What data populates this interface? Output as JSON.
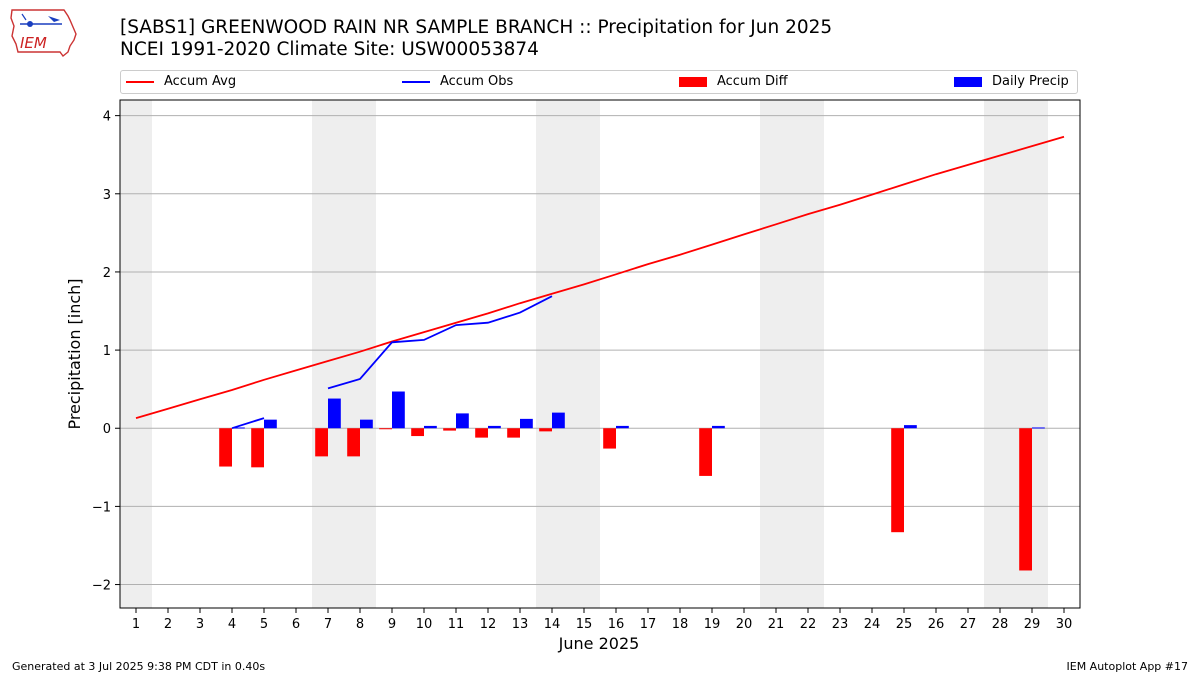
{
  "header": {
    "title_line1": "[SABS1] GREENWOOD RAIN NR SAMPLE BRANCH :: Precipitation for Jun 2025",
    "title_line2": "NCEI 1991-2020 Climate Site: USW00053874",
    "logo_text": "IEM"
  },
  "footer": {
    "generated": "Generated at 3 Jul 2025 9:38 PM CDT in 0.40s",
    "app": "IEM Autoplot App #17"
  },
  "colors": {
    "avg": "#ff0000",
    "obs": "#0000ff",
    "diff": "#ff0000",
    "daily": "#0000ff",
    "weekend": "#eeeeee",
    "grid": "#b0b0b0"
  },
  "chart_data": {
    "type": "bar",
    "xlabel": "June 2025",
    "ylabel": "Precipitation [inch]",
    "xlim": [
      0.5,
      30.5
    ],
    "ylim": [
      -2.3,
      4.2
    ],
    "yticks": [
      -2,
      -1,
      0,
      1,
      2,
      3,
      4
    ],
    "ytick_labels": [
      "−2",
      "−1",
      "0",
      "1",
      "2",
      "3",
      "4"
    ],
    "days": [
      1,
      2,
      3,
      4,
      5,
      6,
      7,
      8,
      9,
      10,
      11,
      12,
      13,
      14,
      15,
      16,
      17,
      18,
      19,
      20,
      21,
      22,
      23,
      24,
      25,
      26,
      27,
      28,
      29,
      30
    ],
    "weekend_days": [
      1,
      7,
      8,
      14,
      15,
      21,
      22,
      28,
      29
    ],
    "grid": "y",
    "legend": {
      "placement": "top",
      "entries": [
        "Accum Avg",
        "Accum Obs",
        "Accum Diff",
        "Daily Precip"
      ]
    },
    "series": [
      {
        "name": "Accum Avg",
        "kind": "line",
        "x": [
          1,
          2,
          3,
          4,
          5,
          6,
          7,
          8,
          9,
          10,
          11,
          12,
          13,
          14,
          15,
          16,
          17,
          18,
          19,
          20,
          21,
          22,
          23,
          24,
          25,
          26,
          27,
          28,
          29,
          30
        ],
        "values": [
          0.13,
          0.25,
          0.37,
          0.49,
          0.62,
          0.74,
          0.86,
          0.98,
          1.11,
          1.23,
          1.35,
          1.47,
          1.6,
          1.72,
          1.84,
          1.97,
          2.1,
          2.22,
          2.35,
          2.48,
          2.61,
          2.74,
          2.86,
          2.99,
          3.12,
          3.25,
          3.37,
          3.49,
          3.61,
          3.73
        ]
      },
      {
        "name": "Accum Obs",
        "kind": "line",
        "x": [
          4,
          5,
          null,
          7,
          8,
          9,
          10,
          11,
          12,
          13,
          14
        ],
        "values": [
          0.0,
          0.13,
          null,
          0.51,
          0.63,
          1.1,
          1.13,
          1.32,
          1.35,
          1.48,
          1.69
        ]
      },
      {
        "name": "Accum Diff",
        "kind": "bar",
        "x": [
          4,
          5,
          7,
          8,
          9,
          10,
          11,
          12,
          13,
          14,
          16,
          19,
          25,
          29
        ],
        "values": [
          -0.49,
          -0.5,
          -0.36,
          -0.36,
          -0.01,
          -0.1,
          -0.03,
          -0.12,
          -0.12,
          -0.04,
          -0.26,
          -0.61,
          -1.33,
          -1.82
        ]
      },
      {
        "name": "Daily Precip",
        "kind": "bar",
        "x": [
          4,
          5,
          7,
          8,
          9,
          10,
          11,
          12,
          13,
          14,
          16,
          19,
          25,
          29
        ],
        "values": [
          0.01,
          0.11,
          0.38,
          0.11,
          0.47,
          0.03,
          0.19,
          0.03,
          0.12,
          0.2,
          0.03,
          0.03,
          0.04,
          0.01
        ]
      }
    ]
  }
}
